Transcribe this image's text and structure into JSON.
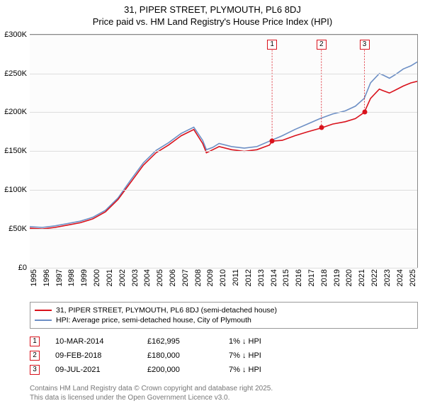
{
  "title_line1": "31, PIPER STREET, PLYMOUTH, PL6 8DJ",
  "title_line2": "Price paid vs. HM Land Registry's House Price Index (HPI)",
  "chart": {
    "type": "line",
    "background_color": "#fcfcfc",
    "grid_color": "#dddddd",
    "border_color": "#888888",
    "text_color": "#333333",
    "ylim": [
      0,
      300000
    ],
    "ytick_step": 50000,
    "yticks": [
      "£0",
      "£50K",
      "£100K",
      "£150K",
      "£200K",
      "£250K",
      "£300K"
    ],
    "xlim": [
      1995,
      2025.7
    ],
    "xticks": [
      1995,
      1996,
      1997,
      1998,
      1999,
      2000,
      2001,
      2002,
      2003,
      2004,
      2005,
      2006,
      2007,
      2008,
      2009,
      2010,
      2011,
      2012,
      2013,
      2014,
      2015,
      2016,
      2017,
      2018,
      2019,
      2020,
      2021,
      2022,
      2023,
      2024,
      2025
    ],
    "line_width": 1.6,
    "series": [
      {
        "name": "price_paid",
        "label": "31, PIPER STREET, PLYMOUTH, PL6 8DJ (semi-detached house)",
        "color": "#d9121c",
        "data": [
          [
            1995,
            51000
          ],
          [
            1996,
            50000
          ],
          [
            1997,
            52000
          ],
          [
            1998,
            55000
          ],
          [
            1999,
            58000
          ],
          [
            2000,
            63000
          ],
          [
            2001,
            72000
          ],
          [
            2002,
            88000
          ],
          [
            2003,
            110000
          ],
          [
            2004,
            132000
          ],
          [
            2005,
            148000
          ],
          [
            2006,
            158000
          ],
          [
            2007,
            170000
          ],
          [
            2008,
            178000
          ],
          [
            2008.7,
            160000
          ],
          [
            2009,
            148000
          ],
          [
            2009.5,
            152000
          ],
          [
            2010,
            156000
          ],
          [
            2011,
            152000
          ],
          [
            2012,
            150000
          ],
          [
            2013,
            152000
          ],
          [
            2014,
            158000
          ],
          [
            2014.2,
            162995
          ],
          [
            2015,
            164000
          ],
          [
            2016,
            170000
          ],
          [
            2017,
            175000
          ],
          [
            2018.1,
            180000
          ],
          [
            2019,
            185000
          ],
          [
            2020,
            188000
          ],
          [
            2020.8,
            192000
          ],
          [
            2021.5,
            200000
          ],
          [
            2022,
            218000
          ],
          [
            2022.7,
            230000
          ],
          [
            2023,
            228000
          ],
          [
            2023.5,
            225000
          ],
          [
            2024,
            229000
          ],
          [
            2024.6,
            234000
          ],
          [
            2025.2,
            238000
          ],
          [
            2025.7,
            240000
          ]
        ]
      },
      {
        "name": "hpi",
        "label": "HPI: Average price, semi-detached house, City of Plymouth",
        "color": "#6d8fc5",
        "data": [
          [
            1995,
            53000
          ],
          [
            1996,
            52000
          ],
          [
            1997,
            54000
          ],
          [
            1998,
            57000
          ],
          [
            1999,
            60000
          ],
          [
            2000,
            65000
          ],
          [
            2001,
            74000
          ],
          [
            2002,
            90000
          ],
          [
            2003,
            113000
          ],
          [
            2004,
            135000
          ],
          [
            2005,
            151000
          ],
          [
            2006,
            161000
          ],
          [
            2007,
            173000
          ],
          [
            2008,
            181000
          ],
          [
            2008.7,
            164000
          ],
          [
            2009,
            152000
          ],
          [
            2009.5,
            155000
          ],
          [
            2010,
            160000
          ],
          [
            2011,
            156000
          ],
          [
            2012,
            154000
          ],
          [
            2013,
            156000
          ],
          [
            2014,
            163000
          ],
          [
            2015,
            170000
          ],
          [
            2016,
            178000
          ],
          [
            2017,
            185000
          ],
          [
            2018,
            192000
          ],
          [
            2019,
            198000
          ],
          [
            2020,
            202000
          ],
          [
            2020.8,
            208000
          ],
          [
            2021.5,
            218000
          ],
          [
            2022,
            238000
          ],
          [
            2022.7,
            250000
          ],
          [
            2023,
            248000
          ],
          [
            2023.5,
            244000
          ],
          [
            2024,
            249000
          ],
          [
            2024.6,
            256000
          ],
          [
            2025.2,
            260000
          ],
          [
            2025.7,
            265000
          ]
        ]
      }
    ],
    "sale_markers": [
      {
        "num": "1",
        "x": 2014.2,
        "y": 162995,
        "color": "#d9121c",
        "box_top_y": 293000
      },
      {
        "num": "2",
        "x": 2018.11,
        "y": 180000,
        "color": "#d9121c",
        "box_top_y": 293000
      },
      {
        "num": "3",
        "x": 2021.52,
        "y": 200000,
        "color": "#d9121c",
        "box_top_y": 293000
      }
    ]
  },
  "legend": [
    {
      "color": "#d9121c",
      "label": "31, PIPER STREET, PLYMOUTH, PL6 8DJ (semi-detached house)"
    },
    {
      "color": "#6d8fc5",
      "label": "HPI: Average price, semi-detached house, City of Plymouth"
    }
  ],
  "sales": [
    {
      "num": "1",
      "color": "#d9121c",
      "date": "10-MAR-2014",
      "price": "£162,995",
      "diff": "1% ↓ HPI"
    },
    {
      "num": "2",
      "color": "#d9121c",
      "date": "09-FEB-2018",
      "price": "£180,000",
      "diff": "7% ↓ HPI"
    },
    {
      "num": "3",
      "color": "#d9121c",
      "date": "09-JUL-2021",
      "price": "£200,000",
      "diff": "7% ↓ HPI"
    }
  ],
  "footer_line1": "Contains HM Land Registry data © Crown copyright and database right 2025.",
  "footer_line2": "This data is licensed under the Open Government Licence v3.0."
}
